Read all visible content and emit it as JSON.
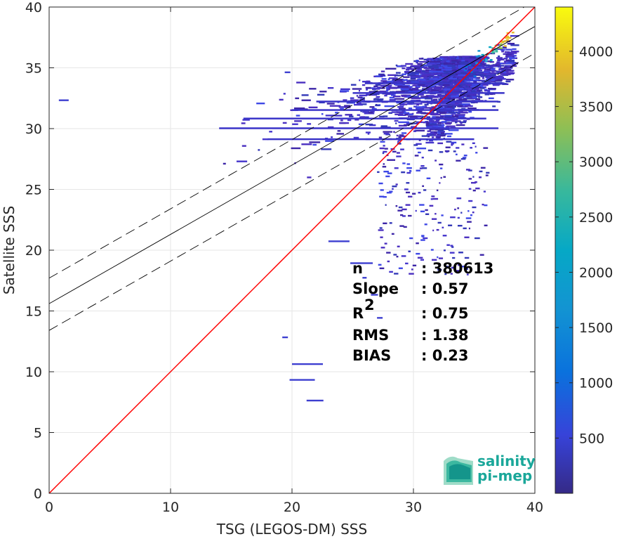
{
  "chart_data": {
    "type": "heatmap",
    "xlabel": "TSG (LEGOS-DM) SSS",
    "ylabel": "Satellite SSS",
    "xlim": [
      0,
      40
    ],
    "ylim": [
      0,
      40
    ],
    "x_ticks": [
      0,
      10,
      20,
      30,
      40
    ],
    "y_ticks": [
      0,
      5,
      10,
      15,
      20,
      25,
      30,
      35,
      40
    ],
    "grid": true,
    "colorbar": {
      "range": [
        0,
        4400
      ],
      "ticks": [
        500,
        1000,
        1500,
        2000,
        2500,
        3000,
        3500,
        4000
      ],
      "colormap": "parula"
    },
    "reference_lines": {
      "one_to_one": {
        "slope": 1,
        "intercept": 0,
        "color": "#ff0000"
      },
      "regression": {
        "slope": 0.57,
        "intercept": 15.6,
        "color": "#000000"
      },
      "regression_upper": {
        "slope": 0.57,
        "intercept": 17.7,
        "color": "#000000",
        "style": "dashed"
      },
      "regression_lower": {
        "slope": 0.57,
        "intercept": 13.4,
        "color": "#000000",
        "style": "dashed"
      }
    },
    "density_core": [
      {
        "x": 37.0,
        "y": 36.8,
        "count": 4400
      },
      {
        "x": 36.0,
        "y": 36.0,
        "count": 2000
      },
      {
        "x": 35.0,
        "y": 35.2,
        "count": 900
      }
    ],
    "stats": [
      {
        "label": "n",
        "value": ": 380613"
      },
      {
        "label": "Slope",
        "value": ": 0.57"
      },
      {
        "label": "R",
        "sup": "2",
        "value": ": 0.75"
      },
      {
        "label": "RMS",
        "value": ": 1.38"
      },
      {
        "label": "BIAS",
        "value": ": 0.23"
      }
    ]
  },
  "logo": {
    "line1": "salinity",
    "line2": "pi-mep"
  }
}
